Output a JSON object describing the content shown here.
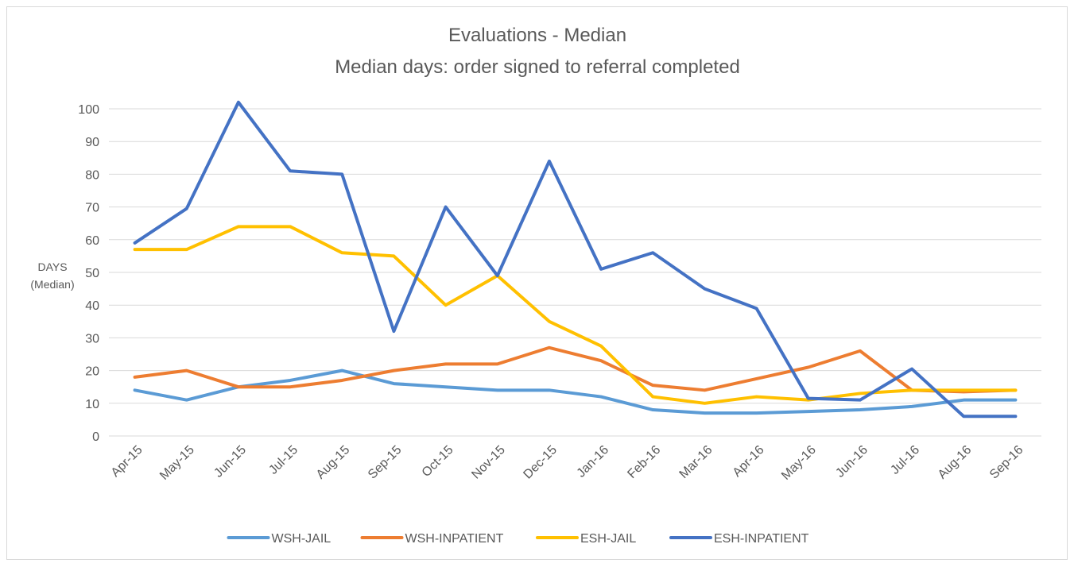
{
  "chart_data": {
    "type": "line",
    "title": "Evaluations - Median",
    "subtitle": "Median days: order signed to referral completed",
    "y_label": [
      "DAYS",
      "(Median)"
    ],
    "categories": [
      "Apr-15",
      "May-15",
      "Jun-15",
      "Jul-15",
      "Aug-15",
      "Sep-15",
      "Oct-15",
      "Nov-15",
      "Dec-15",
      "Jan-16",
      "Feb-16",
      "Mar-16",
      "Apr-16",
      "May-16",
      "Jun-16",
      "Jul-16",
      "Aug-16",
      "Sep-16"
    ],
    "series": [
      {
        "name": "WSH-JAIL",
        "color": "#5b9bd5",
        "values": [
          14,
          11,
          15,
          17,
          20,
          16,
          15,
          14,
          14,
          12,
          8,
          7,
          7,
          7.5,
          8,
          9,
          11,
          11
        ]
      },
      {
        "name": "WSH-INPATIENT",
        "color": "#ed7d31",
        "values": [
          18,
          20,
          15,
          15,
          17,
          20,
          22,
          22,
          27,
          23,
          15.5,
          14,
          17.5,
          21,
          26,
          14,
          13.5,
          14
        ]
      },
      {
        "name": "ESH-JAIL",
        "color": "#ffc000",
        "values": [
          57,
          57,
          64,
          64,
          56,
          55,
          40,
          49,
          35,
          27.5,
          12,
          10,
          12,
          11,
          13,
          14,
          14,
          14
        ]
      },
      {
        "name": "ESH-INPATIENT",
        "color": "#4472c4",
        "values": [
          59,
          69.5,
          102,
          81,
          80,
          32,
          70,
          49,
          84,
          51,
          56,
          45,
          39,
          11.5,
          11,
          20.5,
          6,
          6
        ]
      }
    ],
    "ylim": [
      0,
      100
    ],
    "yticks": [
      0,
      10,
      20,
      30,
      40,
      50,
      60,
      70,
      80,
      90,
      100
    ],
    "grid": true,
    "legend": "bottom"
  }
}
